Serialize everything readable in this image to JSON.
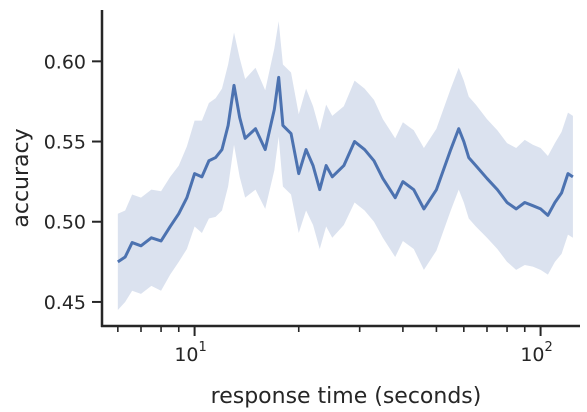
{
  "chart_data": {
    "type": "line",
    "xlabel": "response time (seconds)",
    "ylabel": "accuracy",
    "xscale": "log",
    "xlim": [
      5.4,
      130
    ],
    "ylim": [
      0.435,
      0.632
    ],
    "x_ticks": [
      {
        "value": 10,
        "base": "10",
        "exp": "1"
      },
      {
        "value": 100,
        "base": "10",
        "exp": "2"
      }
    ],
    "y_ticks": [
      {
        "value": 0.45,
        "label": "0.45"
      },
      {
        "value": 0.5,
        "label": "0.50"
      },
      {
        "value": 0.55,
        "label": "0.55"
      },
      {
        "value": 0.6,
        "label": "0.60"
      }
    ],
    "grid": false,
    "line_color": "#4c72b0",
    "band_color": "#dbe2ef",
    "series": [
      {
        "x": [
          6.0,
          6.3,
          6.6,
          7.0,
          7.5,
          8.0,
          8.5,
          9.0,
          9.5,
          10.0,
          10.5,
          11.0,
          11.5,
          12.0,
          12.5,
          13.0,
          13.5,
          14.0,
          15.0,
          16.0,
          17.0,
          17.5,
          18.0,
          19.0,
          20.0,
          21.0,
          22.0,
          23.0,
          24.0,
          25.0,
          27.0,
          29.0,
          31.0,
          33.0,
          35.0,
          38.0,
          40.0,
          43.0,
          46.0,
          50.0,
          55.0,
          58.0,
          60.0,
          62.0,
          65.0,
          70.0,
          75.0,
          80.0,
          85.0,
          90.0,
          95.0,
          100.0,
          105.0,
          110.0,
          115.0,
          120.0,
          124.0
        ],
        "y": [
          0.475,
          0.478,
          0.487,
          0.485,
          0.49,
          0.488,
          0.497,
          0.505,
          0.515,
          0.53,
          0.528,
          0.538,
          0.54,
          0.545,
          0.56,
          0.585,
          0.565,
          0.552,
          0.558,
          0.545,
          0.57,
          0.59,
          0.56,
          0.555,
          0.53,
          0.545,
          0.535,
          0.52,
          0.535,
          0.528,
          0.535,
          0.55,
          0.545,
          0.538,
          0.527,
          0.515,
          0.525,
          0.52,
          0.508,
          0.52,
          0.545,
          0.558,
          0.55,
          0.54,
          0.535,
          0.527,
          0.52,
          0.512,
          0.508,
          0.512,
          0.51,
          0.508,
          0.504,
          0.512,
          0.518,
          0.53,
          0.528
        ],
        "lower": [
          0.445,
          0.45,
          0.457,
          0.455,
          0.46,
          0.457,
          0.467,
          0.475,
          0.483,
          0.497,
          0.493,
          0.502,
          0.503,
          0.507,
          0.522,
          0.548,
          0.528,
          0.515,
          0.52,
          0.508,
          0.532,
          0.553,
          0.522,
          0.517,
          0.493,
          0.507,
          0.498,
          0.483,
          0.497,
          0.49,
          0.498,
          0.512,
          0.507,
          0.5,
          0.49,
          0.478,
          0.488,
          0.483,
          0.47,
          0.482,
          0.507,
          0.52,
          0.512,
          0.502,
          0.497,
          0.49,
          0.483,
          0.475,
          0.47,
          0.473,
          0.472,
          0.47,
          0.467,
          0.475,
          0.48,
          0.492,
          0.49
        ],
        "upper": [
          0.505,
          0.507,
          0.517,
          0.515,
          0.52,
          0.519,
          0.528,
          0.535,
          0.547,
          0.563,
          0.563,
          0.574,
          0.577,
          0.583,
          0.598,
          0.618,
          0.602,
          0.589,
          0.596,
          0.582,
          0.608,
          0.625,
          0.598,
          0.593,
          0.567,
          0.583,
          0.572,
          0.557,
          0.573,
          0.566,
          0.572,
          0.588,
          0.583,
          0.576,
          0.564,
          0.552,
          0.562,
          0.557,
          0.546,
          0.558,
          0.583,
          0.596,
          0.588,
          0.578,
          0.573,
          0.564,
          0.557,
          0.549,
          0.546,
          0.551,
          0.548,
          0.546,
          0.541,
          0.549,
          0.556,
          0.568,
          0.566
        ]
      }
    ]
  }
}
